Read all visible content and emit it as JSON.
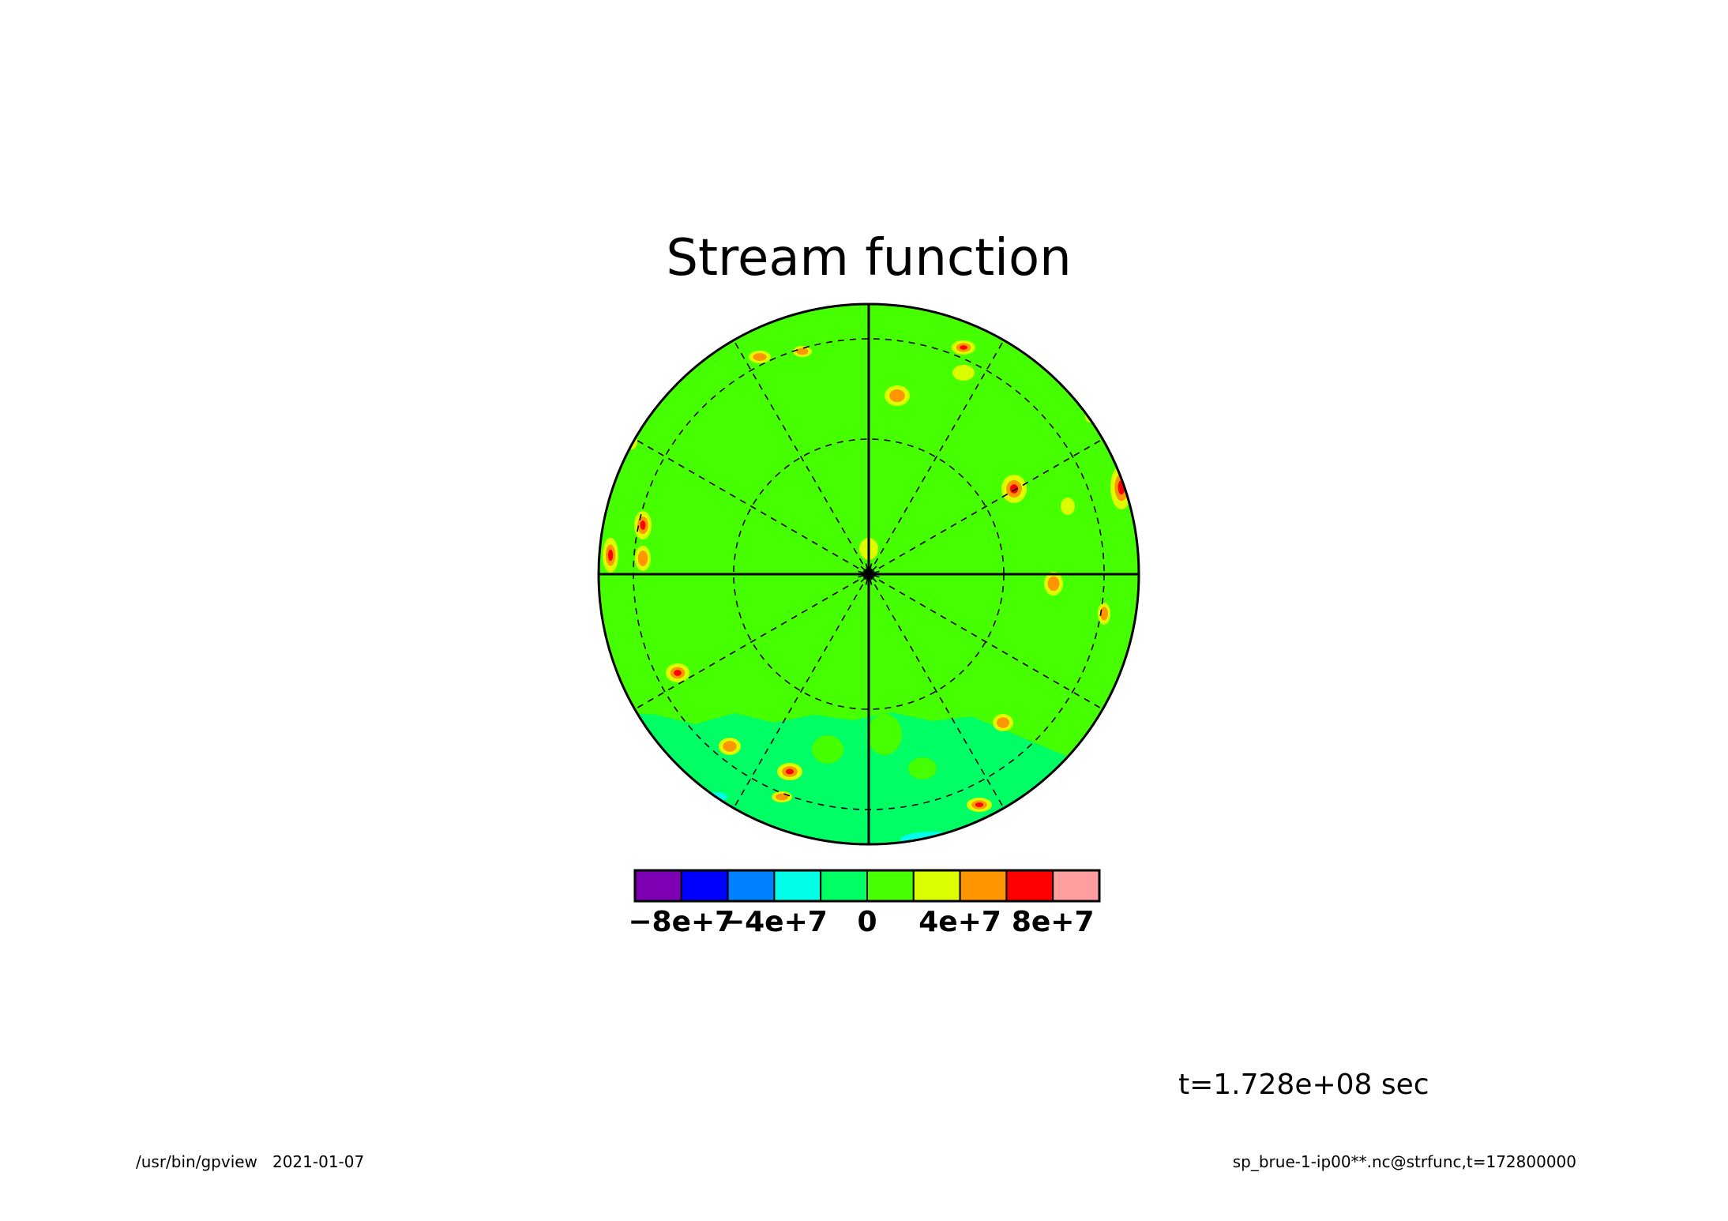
{
  "chart_data": {
    "type": "heatmap",
    "title": "Stream function",
    "projection": "polar stereographic (hemisphere)",
    "grid": true,
    "colorbar": {
      "placement": "bottom",
      "boundaries": [
        -100000000.0,
        -80000000.0,
        -60000000.0,
        -40000000.0,
        -20000000.0,
        0,
        20000000.0,
        40000000.0,
        60000000.0,
        80000000.0,
        100000000.0
      ],
      "colors": [
        "#7d00b4",
        "#0000ff",
        "#0082ff",
        "#00ffe6",
        "#00ff64",
        "#46ff00",
        "#dcff00",
        "#ff9600",
        "#ff0000",
        "#ff9e9e"
      ],
      "tick_values": [
        -80000000.0,
        -40000000.0,
        0,
        40000000.0,
        80000000.0
      ],
      "tick_labels": [
        "−8e+7",
        "−4e+7",
        "0",
        "4e+7",
        "8e+7"
      ]
    },
    "background_level": "0 to 2e+7",
    "features": [
      {
        "type": "region",
        "level": "0 to 2e+7",
        "description": "lower sector, mostly below 0 band boundary"
      },
      {
        "type": "cell",
        "level": "4e+7 to 8e+7"
      }
    ]
  },
  "annotations": {
    "time": "t=1.728e+08 sec",
    "footer_left": "/usr/bin/gpview   2021-01-07",
    "footer_right": "sp_brue-1-ip00**.nc@strfunc,t=172800000"
  }
}
